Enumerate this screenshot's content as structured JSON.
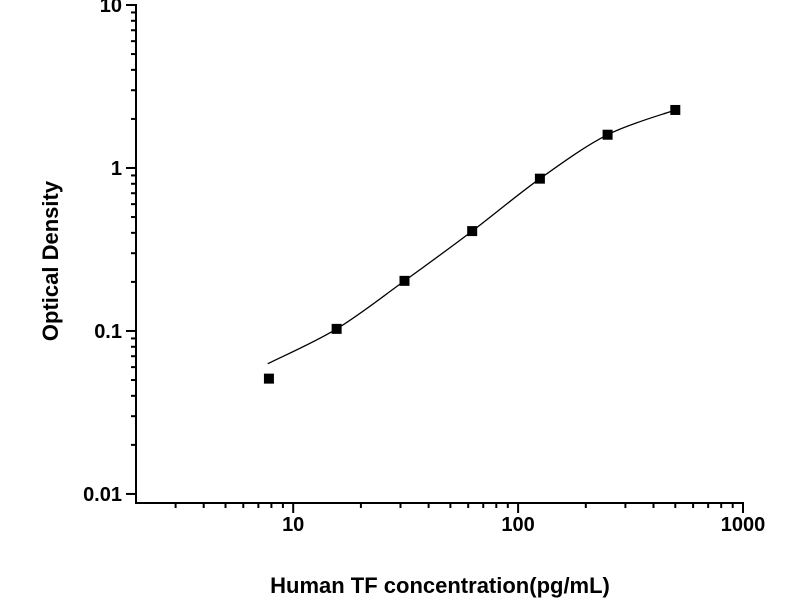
{
  "figure": {
    "background": "#ffffff",
    "foreground": "#000000"
  },
  "chart_data": {
    "type": "scatter",
    "subtype": "elisa-standard-curve",
    "title": "",
    "xlabel": "Human TF concentration(pg/mL)",
    "ylabel": "Optical Density",
    "x_scale": "log",
    "y_scale": "log",
    "xlim": [
      2,
      1000
    ],
    "ylim": [
      0.0088,
      10
    ],
    "grid": false,
    "legend": false,
    "x_ticks": [
      {
        "value": 10,
        "label": "10"
      },
      {
        "value": 100,
        "label": "100"
      },
      {
        "value": 1000,
        "label": "1000"
      }
    ],
    "y_ticks": [
      {
        "value": 0.01,
        "label": "0.01"
      },
      {
        "value": 0.1,
        "label": "0.1"
      },
      {
        "value": 1,
        "label": "1"
      },
      {
        "value": 10,
        "label": "10"
      }
    ],
    "series": [
      {
        "name": "standard-points",
        "marker": "filled-square",
        "color": "#000000",
        "x": [
          7.8,
          15.6,
          31.25,
          62.5,
          125,
          250,
          500
        ],
        "y": [
          0.051,
          0.103,
          0.203,
          0.41,
          0.86,
          1.6,
          2.27
        ]
      }
    ],
    "fit_curve": {
      "name": "4pl-fit-line",
      "color": "#000000",
      "x": [
        7.7,
        15.6,
        31.25,
        62.5,
        125,
        250,
        500
      ],
      "y": [
        0.063,
        0.103,
        0.203,
        0.41,
        0.86,
        1.6,
        2.27
      ]
    }
  }
}
